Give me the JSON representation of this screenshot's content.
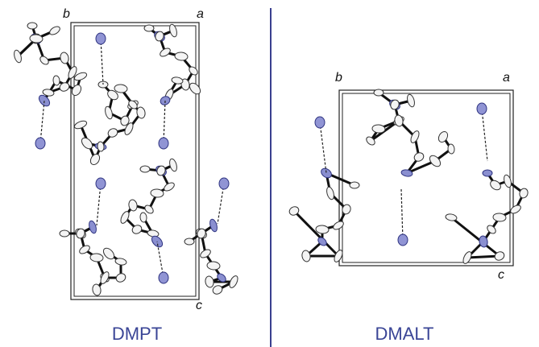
{
  "panels": [
    {
      "axis_labels": {
        "b": "b",
        "a": "a",
        "c": "c"
      },
      "caption": "DMPT"
    },
    {
      "axis_labels": {
        "b": "b",
        "a": "a",
        "c": "c"
      },
      "caption": "DMALT"
    }
  ]
}
